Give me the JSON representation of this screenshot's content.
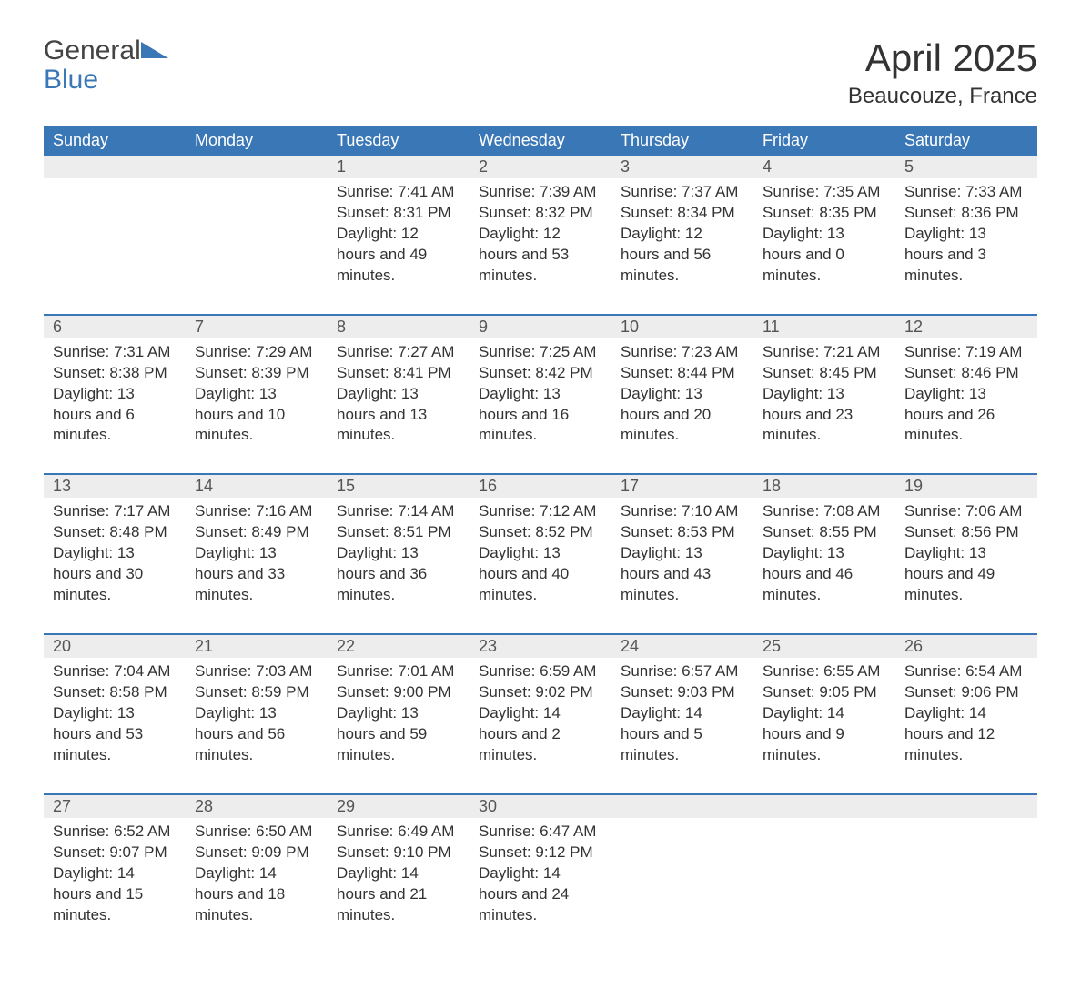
{
  "brand": {
    "word1": "General",
    "word2": "Blue",
    "color_general": "#444444",
    "color_blue": "#3a77b7",
    "triangle_color": "#3a77b7"
  },
  "title": "April 2025",
  "location": "Beaucouze, France",
  "colors": {
    "header_bg": "#3a77b7",
    "header_text": "#ffffff",
    "daynum_bg": "#ededed",
    "week_border": "#3a77b7",
    "text": "#333333",
    "background": "#ffffff"
  },
  "typography": {
    "title_fontsize": 42,
    "location_fontsize": 24,
    "header_fontsize": 18,
    "body_fontsize": 17,
    "logo_fontsize": 30
  },
  "day_names": [
    "Sunday",
    "Monday",
    "Tuesday",
    "Wednesday",
    "Thursday",
    "Friday",
    "Saturday"
  ],
  "weeks": [
    {
      "days": [
        {
          "num": "",
          "sunrise": "",
          "sunset": "",
          "daylight": ""
        },
        {
          "num": "",
          "sunrise": "",
          "sunset": "",
          "daylight": ""
        },
        {
          "num": "1",
          "sunrise": "Sunrise: 7:41 AM",
          "sunset": "Sunset: 8:31 PM",
          "daylight": "Daylight: 12 hours and 49 minutes."
        },
        {
          "num": "2",
          "sunrise": "Sunrise: 7:39 AM",
          "sunset": "Sunset: 8:32 PM",
          "daylight": "Daylight: 12 hours and 53 minutes."
        },
        {
          "num": "3",
          "sunrise": "Sunrise: 7:37 AM",
          "sunset": "Sunset: 8:34 PM",
          "daylight": "Daylight: 12 hours and 56 minutes."
        },
        {
          "num": "4",
          "sunrise": "Sunrise: 7:35 AM",
          "sunset": "Sunset: 8:35 PM",
          "daylight": "Daylight: 13 hours and 0 minutes."
        },
        {
          "num": "5",
          "sunrise": "Sunrise: 7:33 AM",
          "sunset": "Sunset: 8:36 PM",
          "daylight": "Daylight: 13 hours and 3 minutes."
        }
      ]
    },
    {
      "days": [
        {
          "num": "6",
          "sunrise": "Sunrise: 7:31 AM",
          "sunset": "Sunset: 8:38 PM",
          "daylight": "Daylight: 13 hours and 6 minutes."
        },
        {
          "num": "7",
          "sunrise": "Sunrise: 7:29 AM",
          "sunset": "Sunset: 8:39 PM",
          "daylight": "Daylight: 13 hours and 10 minutes."
        },
        {
          "num": "8",
          "sunrise": "Sunrise: 7:27 AM",
          "sunset": "Sunset: 8:41 PM",
          "daylight": "Daylight: 13 hours and 13 minutes."
        },
        {
          "num": "9",
          "sunrise": "Sunrise: 7:25 AM",
          "sunset": "Sunset: 8:42 PM",
          "daylight": "Daylight: 13 hours and 16 minutes."
        },
        {
          "num": "10",
          "sunrise": "Sunrise: 7:23 AM",
          "sunset": "Sunset: 8:44 PM",
          "daylight": "Daylight: 13 hours and 20 minutes."
        },
        {
          "num": "11",
          "sunrise": "Sunrise: 7:21 AM",
          "sunset": "Sunset: 8:45 PM",
          "daylight": "Daylight: 13 hours and 23 minutes."
        },
        {
          "num": "12",
          "sunrise": "Sunrise: 7:19 AM",
          "sunset": "Sunset: 8:46 PM",
          "daylight": "Daylight: 13 hours and 26 minutes."
        }
      ]
    },
    {
      "days": [
        {
          "num": "13",
          "sunrise": "Sunrise: 7:17 AM",
          "sunset": "Sunset: 8:48 PM",
          "daylight": "Daylight: 13 hours and 30 minutes."
        },
        {
          "num": "14",
          "sunrise": "Sunrise: 7:16 AM",
          "sunset": "Sunset: 8:49 PM",
          "daylight": "Daylight: 13 hours and 33 minutes."
        },
        {
          "num": "15",
          "sunrise": "Sunrise: 7:14 AM",
          "sunset": "Sunset: 8:51 PM",
          "daylight": "Daylight: 13 hours and 36 minutes."
        },
        {
          "num": "16",
          "sunrise": "Sunrise: 7:12 AM",
          "sunset": "Sunset: 8:52 PM",
          "daylight": "Daylight: 13 hours and 40 minutes."
        },
        {
          "num": "17",
          "sunrise": "Sunrise: 7:10 AM",
          "sunset": "Sunset: 8:53 PM",
          "daylight": "Daylight: 13 hours and 43 minutes."
        },
        {
          "num": "18",
          "sunrise": "Sunrise: 7:08 AM",
          "sunset": "Sunset: 8:55 PM",
          "daylight": "Daylight: 13 hours and 46 minutes."
        },
        {
          "num": "19",
          "sunrise": "Sunrise: 7:06 AM",
          "sunset": "Sunset: 8:56 PM",
          "daylight": "Daylight: 13 hours and 49 minutes."
        }
      ]
    },
    {
      "days": [
        {
          "num": "20",
          "sunrise": "Sunrise: 7:04 AM",
          "sunset": "Sunset: 8:58 PM",
          "daylight": "Daylight: 13 hours and 53 minutes."
        },
        {
          "num": "21",
          "sunrise": "Sunrise: 7:03 AM",
          "sunset": "Sunset: 8:59 PM",
          "daylight": "Daylight: 13 hours and 56 minutes."
        },
        {
          "num": "22",
          "sunrise": "Sunrise: 7:01 AM",
          "sunset": "Sunset: 9:00 PM",
          "daylight": "Daylight: 13 hours and 59 minutes."
        },
        {
          "num": "23",
          "sunrise": "Sunrise: 6:59 AM",
          "sunset": "Sunset: 9:02 PM",
          "daylight": "Daylight: 14 hours and 2 minutes."
        },
        {
          "num": "24",
          "sunrise": "Sunrise: 6:57 AM",
          "sunset": "Sunset: 9:03 PM",
          "daylight": "Daylight: 14 hours and 5 minutes."
        },
        {
          "num": "25",
          "sunrise": "Sunrise: 6:55 AM",
          "sunset": "Sunset: 9:05 PM",
          "daylight": "Daylight: 14 hours and 9 minutes."
        },
        {
          "num": "26",
          "sunrise": "Sunrise: 6:54 AM",
          "sunset": "Sunset: 9:06 PM",
          "daylight": "Daylight: 14 hours and 12 minutes."
        }
      ]
    },
    {
      "days": [
        {
          "num": "27",
          "sunrise": "Sunrise: 6:52 AM",
          "sunset": "Sunset: 9:07 PM",
          "daylight": "Daylight: 14 hours and 15 minutes."
        },
        {
          "num": "28",
          "sunrise": "Sunrise: 6:50 AM",
          "sunset": "Sunset: 9:09 PM",
          "daylight": "Daylight: 14 hours and 18 minutes."
        },
        {
          "num": "29",
          "sunrise": "Sunrise: 6:49 AM",
          "sunset": "Sunset: 9:10 PM",
          "daylight": "Daylight: 14 hours and 21 minutes."
        },
        {
          "num": "30",
          "sunrise": "Sunrise: 6:47 AM",
          "sunset": "Sunset: 9:12 PM",
          "daylight": "Daylight: 14 hours and 24 minutes."
        },
        {
          "num": "",
          "sunrise": "",
          "sunset": "",
          "daylight": ""
        },
        {
          "num": "",
          "sunrise": "",
          "sunset": "",
          "daylight": ""
        },
        {
          "num": "",
          "sunrise": "",
          "sunset": "",
          "daylight": ""
        }
      ]
    }
  ]
}
